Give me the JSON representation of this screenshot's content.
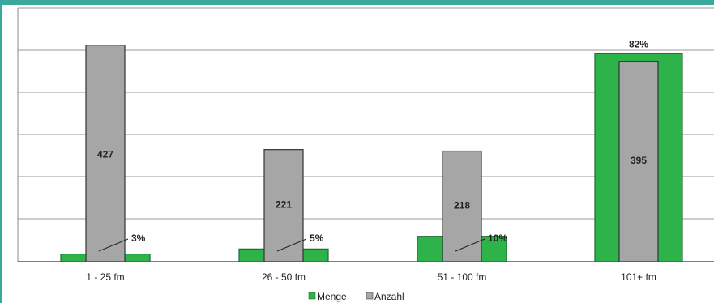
{
  "chart_data": {
    "type": "bar",
    "title": "",
    "xlabel": "",
    "ylabel": "",
    "categories": [
      "1 - 25 fm",
      "26 - 50 fm",
      "51 - 100 fm",
      "101+ fm"
    ],
    "series": [
      {
        "name": "Menge",
        "values": [
          3,
          5,
          10,
          82
        ],
        "labels": [
          "3%",
          "5%",
          "10%",
          "82%"
        ],
        "unit": "%",
        "color": "#2db34a"
      },
      {
        "name": "Anzahl",
        "values": [
          427,
          221,
          218,
          395
        ],
        "labels": [
          "427",
          "221",
          "218",
          "395"
        ],
        "color": "#a6a6a6"
      }
    ],
    "gridlines": true,
    "legend_position": "bottom",
    "ylim_count": [
      0,
      500
    ],
    "ylim_percent": [
      0,
      100
    ]
  }
}
